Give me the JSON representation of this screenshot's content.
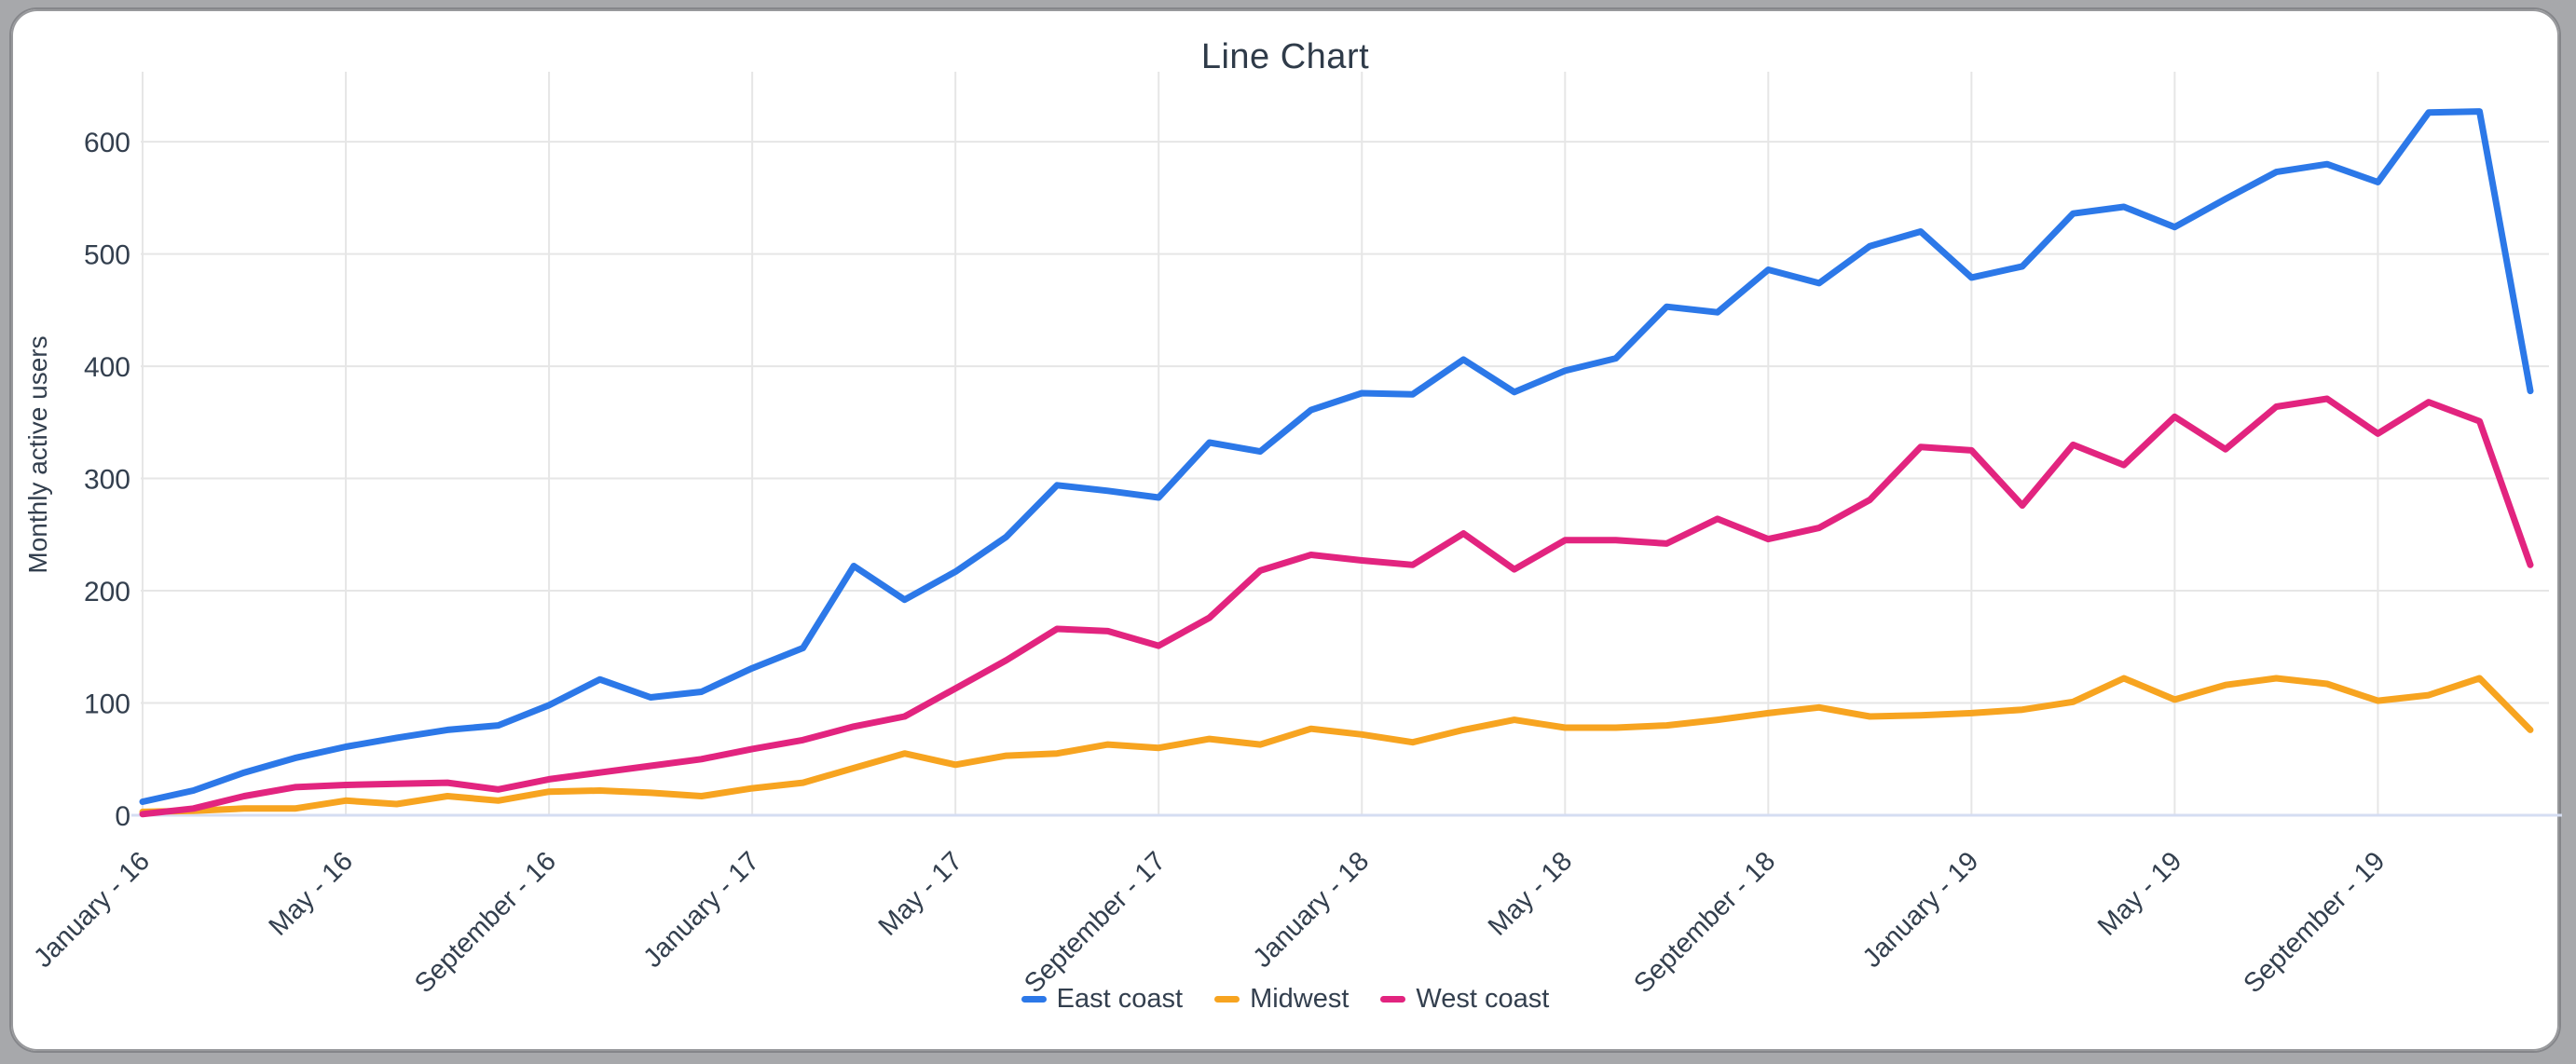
{
  "window": {
    "title": "Line Chart"
  },
  "y_axis": {
    "label": "Monthly active users",
    "ticks": [
      0,
      100,
      200,
      300,
      400,
      500,
      600
    ]
  },
  "x_axis": {
    "tick_labels": [
      "January - 16",
      "May - 16",
      "September - 16",
      "January - 17",
      "May - 17",
      "September - 17",
      "January - 18",
      "May - 18",
      "September - 18",
      "January - 19",
      "May - 19",
      "September - 19"
    ]
  },
  "colors": {
    "east_coast": "#2C78E8",
    "midwest": "#F7A420",
    "west_coast": "#E2247F",
    "grid": "#E6E6E6",
    "baseline": "#D5DDF2",
    "text": "#333F4E"
  },
  "chart_data": {
    "type": "line",
    "title": "Line Chart",
    "xlabel": "",
    "ylabel": "Monthly active users",
    "ylim": [
      0,
      650
    ],
    "grid": true,
    "legend_position": "bottom",
    "x_tick_every": 4,
    "categories": [
      "January - 16",
      "February - 16",
      "March - 16",
      "April - 16",
      "May - 16",
      "June - 16",
      "July - 16",
      "August - 16",
      "September - 16",
      "October - 16",
      "November - 16",
      "December - 16",
      "January - 17",
      "February - 17",
      "March - 17",
      "April - 17",
      "May - 17",
      "June - 17",
      "July - 17",
      "August - 17",
      "September - 17",
      "October - 17",
      "November - 17",
      "December - 17",
      "January - 18",
      "February - 18",
      "March - 18",
      "April - 18",
      "May - 18",
      "June - 18",
      "July - 18",
      "August - 18",
      "September - 18",
      "October - 18",
      "November - 18",
      "December - 18",
      "January - 19",
      "February - 19",
      "March - 19",
      "April - 19",
      "May - 19",
      "June - 19",
      "July - 19",
      "August - 19",
      "September - 19",
      "October - 19",
      "November - 19",
      "December - 19"
    ],
    "series": [
      {
        "name": "East coast",
        "color": "#2C78E8",
        "values": [
          12,
          22,
          38,
          51,
          61,
          69,
          76,
          80,
          98,
          121,
          105,
          110,
          131,
          149,
          222,
          192,
          217,
          248,
          294,
          289,
          283,
          332,
          324,
          361,
          376,
          375,
          406,
          377,
          396,
          407,
          453,
          448,
          486,
          474,
          507,
          520,
          479,
          489,
          536,
          542,
          524,
          549,
          573,
          580,
          564,
          626,
          627,
          378
        ]
      },
      {
        "name": "Midwest",
        "color": "#F7A420",
        "values": [
          3,
          4,
          6,
          6,
          13,
          10,
          17,
          13,
          21,
          22,
          20,
          17,
          24,
          29,
          42,
          55,
          45,
          53,
          55,
          63,
          60,
          68,
          63,
          77,
          72,
          65,
          76,
          85,
          78,
          78,
          80,
          85,
          91,
          96,
          88,
          89,
          91,
          94,
          101,
          122,
          103,
          116,
          122,
          117,
          102,
          107,
          122,
          76
        ]
      },
      {
        "name": "West coast",
        "color": "#E2247F",
        "values": [
          1,
          6,
          17,
          25,
          27,
          28,
          29,
          23,
          32,
          38,
          44,
          50,
          59,
          67,
          79,
          88,
          113,
          138,
          166,
          164,
          151,
          176,
          218,
          232,
          227,
          223,
          251,
          219,
          245,
          245,
          242,
          264,
          246,
          256,
          281,
          328,
          325,
          276,
          330,
          312,
          355,
          326,
          364,
          371,
          340,
          368,
          351,
          223
        ]
      }
    ]
  }
}
